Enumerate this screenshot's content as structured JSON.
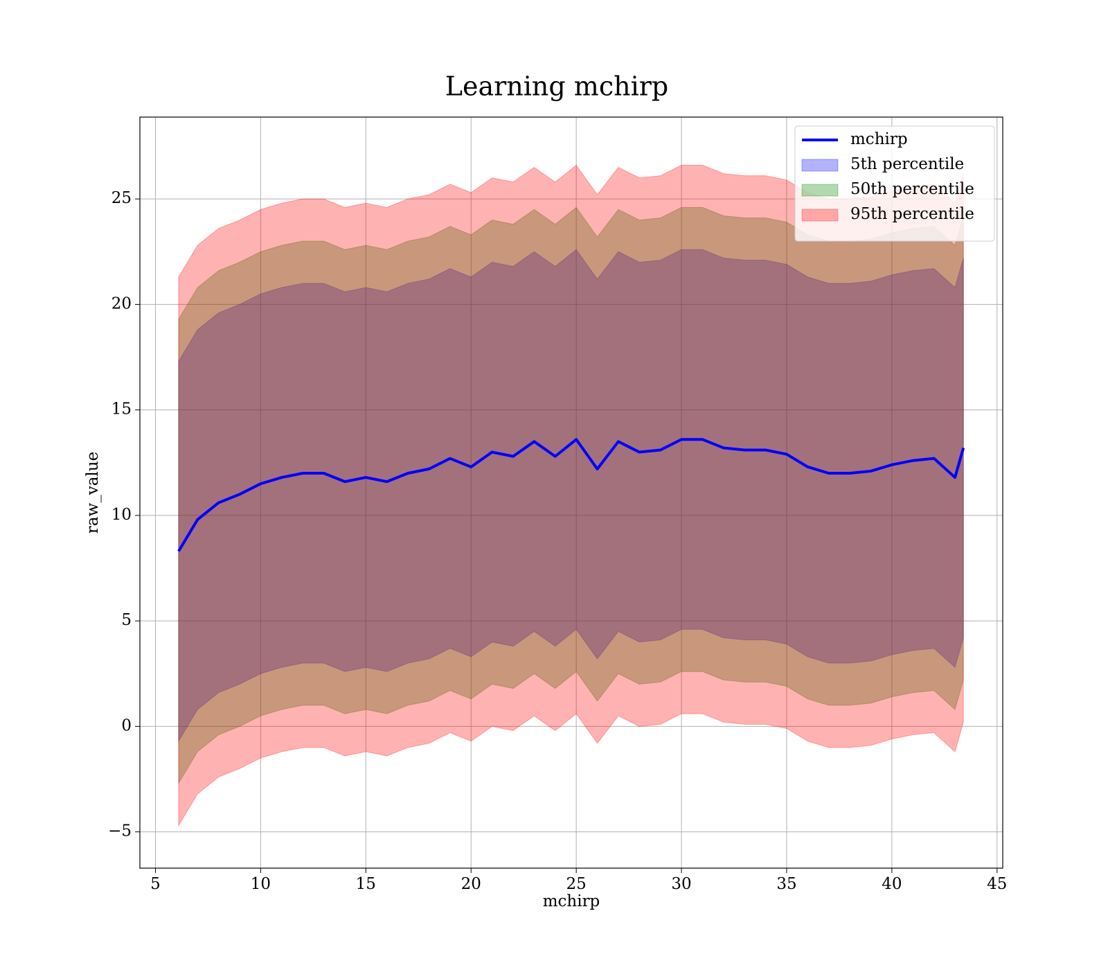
{
  "chart_data": {
    "type": "line",
    "title": "Learning mchirp",
    "xlabel": "mchirp",
    "ylabel": "raw_value",
    "x": [
      6.1,
      7,
      8,
      9,
      10,
      11,
      12,
      13,
      14,
      15,
      16,
      17,
      18,
      19,
      20,
      21,
      22,
      23,
      24,
      25,
      26,
      27,
      28,
      29,
      30,
      31,
      32,
      33,
      34,
      35,
      36,
      37,
      38,
      39,
      40,
      41,
      42,
      43,
      43.4
    ],
    "series": [
      {
        "name": "mchirp",
        "color": "#0000ff",
        "values": [
          8.3,
          9.8,
          10.6,
          11.0,
          11.5,
          11.8,
          12.0,
          12.0,
          11.6,
          11.8,
          11.6,
          12.0,
          12.2,
          12.7,
          12.3,
          13.0,
          12.8,
          13.5,
          12.8,
          13.6,
          12.2,
          13.5,
          13.0,
          13.1,
          13.6,
          13.6,
          13.2,
          13.1,
          13.1,
          12.9,
          12.3,
          12.0,
          12.0,
          12.1,
          12.4,
          12.6,
          12.7,
          11.8,
          13.2
        ]
      }
    ],
    "bands": [
      {
        "name": "5th percentile",
        "color": "#0000ff",
        "upper": [
          17.3,
          18.8,
          19.6,
          20.0,
          20.5,
          20.8,
          21.0,
          21.0,
          20.6,
          20.8,
          20.6,
          21.0,
          21.2,
          21.7,
          21.3,
          22.0,
          21.8,
          22.5,
          21.8,
          22.6,
          21.2,
          22.5,
          22.0,
          22.1,
          22.6,
          22.6,
          22.2,
          22.1,
          22.1,
          21.9,
          21.3,
          21.0,
          21.0,
          21.1,
          21.4,
          21.6,
          21.7,
          20.8,
          22.2
        ],
        "lower": [
          -0.7,
          0.8,
          1.6,
          2.0,
          2.5,
          2.8,
          3.0,
          3.0,
          2.6,
          2.8,
          2.6,
          3.0,
          3.2,
          3.7,
          3.3,
          4.0,
          3.8,
          4.5,
          3.8,
          4.6,
          3.2,
          4.5,
          4.0,
          4.1,
          4.6,
          4.6,
          4.2,
          4.1,
          4.1,
          3.9,
          3.3,
          3.0,
          3.0,
          3.1,
          3.4,
          3.6,
          3.7,
          2.8,
          4.2
        ]
      },
      {
        "name": "50th percentile",
        "color": "#008000",
        "upper": [
          19.3,
          20.8,
          21.6,
          22.0,
          22.5,
          22.8,
          23.0,
          23.0,
          22.6,
          22.8,
          22.6,
          23.0,
          23.2,
          23.7,
          23.3,
          24.0,
          23.8,
          24.5,
          23.8,
          24.6,
          23.2,
          24.5,
          24.0,
          24.1,
          24.6,
          24.6,
          24.2,
          24.1,
          24.1,
          23.9,
          23.3,
          23.0,
          23.0,
          23.1,
          23.4,
          23.6,
          23.7,
          22.8,
          24.2
        ],
        "lower": [
          -2.7,
          -1.2,
          -0.4,
          0.0,
          0.5,
          0.8,
          1.0,
          1.0,
          0.6,
          0.8,
          0.6,
          1.0,
          1.2,
          1.7,
          1.3,
          2.0,
          1.8,
          2.5,
          1.8,
          2.6,
          1.2,
          2.5,
          2.0,
          2.1,
          2.6,
          2.6,
          2.2,
          2.1,
          2.1,
          1.9,
          1.3,
          1.0,
          1.0,
          1.1,
          1.4,
          1.6,
          1.7,
          0.8,
          2.2
        ]
      },
      {
        "name": "95th percentile",
        "color": "#ff0000",
        "upper": [
          21.3,
          22.8,
          23.6,
          24.0,
          24.5,
          24.8,
          25.0,
          25.0,
          24.6,
          24.8,
          24.6,
          25.0,
          25.2,
          25.7,
          25.3,
          26.0,
          25.8,
          26.5,
          25.8,
          26.6,
          25.2,
          26.5,
          26.0,
          26.1,
          26.6,
          26.6,
          26.2,
          26.1,
          26.1,
          25.9,
          25.3,
          25.0,
          25.0,
          25.1,
          25.4,
          25.6,
          25.7,
          24.8,
          26.2
        ],
        "lower": [
          -4.7,
          -3.2,
          -2.4,
          -2.0,
          -1.5,
          -1.2,
          -1.0,
          -1.0,
          -1.4,
          -1.2,
          -1.4,
          -1.0,
          -0.8,
          -0.3,
          -0.7,
          0.0,
          -0.2,
          0.5,
          -0.2,
          0.6,
          -0.8,
          0.5,
          0.0,
          0.1,
          0.6,
          0.6,
          0.2,
          0.1,
          0.1,
          -0.1,
          -0.7,
          -1.0,
          -1.0,
          -0.9,
          -0.6,
          -0.4,
          -0.3,
          -1.2,
          0.2
        ]
      }
    ],
    "band_opacity": 0.3,
    "xlim": [
      4.26,
      45.27
    ],
    "ylim": [
      -6.72,
      28.88
    ],
    "xticks": [
      5,
      10,
      15,
      20,
      25,
      30,
      35,
      40,
      45
    ],
    "yticks": [
      {
        "value": -5,
        "label": "−5"
      },
      0,
      5,
      10,
      15,
      20,
      25
    ],
    "grid": true,
    "legend": "upper right"
  }
}
